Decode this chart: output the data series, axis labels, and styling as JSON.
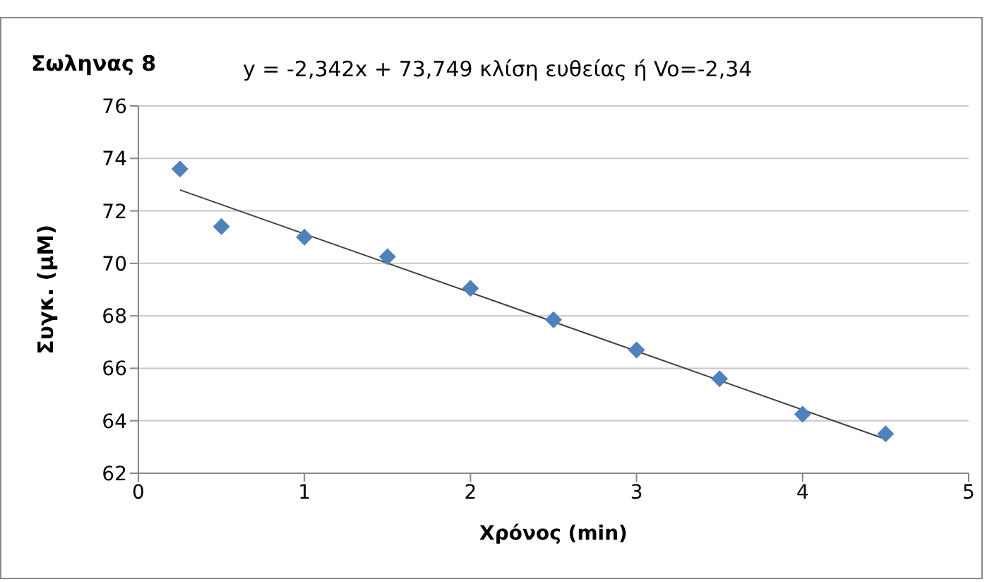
{
  "chart_data": {
    "type": "scatter",
    "title": "Σωληνας 8",
    "xlabel": "Χρόνος (min)",
    "ylabel": "Συγκ. (μM)",
    "annotations": [
      "y = -2,342x + 73,749  κλίση ευθείας ή Vo=-2,34"
    ],
    "x": [
      0.25,
      0.5,
      1,
      1.5,
      2,
      2.5,
      3,
      3.5,
      4,
      4.5
    ],
    "series": [
      {
        "color": "#4f81bd",
        "marker": "diamond",
        "values": [
          73.6,
          71.4,
          71.0,
          70.25,
          69.05,
          67.85,
          66.7,
          65.6,
          64.25,
          63.5
        ]
      },
      {
        "type": "line",
        "color": "#404040",
        "marker": "none",
        "x": [
          0.25,
          4.5
        ],
        "values": [
          72.8,
          63.3
        ]
      }
    ],
    "xlim": [
      0,
      5
    ],
    "xticks": [
      0,
      1,
      2,
      3,
      4,
      5
    ],
    "ylim": [
      62,
      76
    ],
    "yticks": [
      62,
      64,
      66,
      68,
      70,
      72,
      74,
      76
    ],
    "grid": "y",
    "legend": false
  }
}
